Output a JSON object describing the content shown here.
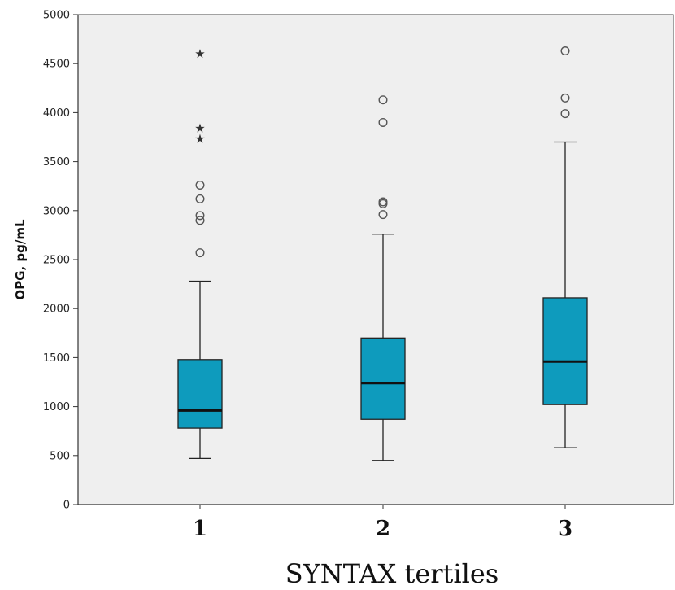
{
  "chart_data": {
    "type": "boxplot",
    "title": "",
    "xlabel": "SYNTAX tertiles",
    "ylabel": "OPG, pg/mL",
    "ylim": [
      0,
      5000
    ],
    "yticks": [
      0,
      500,
      1000,
      1500,
      2000,
      2500,
      3000,
      3500,
      4000,
      4500,
      5000
    ],
    "grid": false,
    "box_color": "#0e9bbd",
    "plot_background": "#efefef",
    "categories": [
      "1",
      "2",
      "3"
    ],
    "boxes": [
      {
        "category": "1",
        "whisker_low": 470,
        "q1": 780,
        "median": 960,
        "q3": 1480,
        "whisker_high": 2280,
        "outliers": [
          2570,
          2900,
          2950,
          3120,
          3260
        ],
        "extremes": [
          3740,
          3850,
          4610
        ]
      },
      {
        "category": "2",
        "whisker_low": 450,
        "q1": 870,
        "median": 1240,
        "q3": 1700,
        "whisker_high": 2760,
        "outliers": [
          2960,
          3070,
          3090,
          3900,
          4130
        ],
        "extremes": []
      },
      {
        "category": "3",
        "whisker_low": 580,
        "q1": 1020,
        "median": 1460,
        "q3": 2110,
        "whisker_high": 3700,
        "outliers": [
          3990,
          4150,
          4630
        ],
        "extremes": []
      }
    ]
  }
}
